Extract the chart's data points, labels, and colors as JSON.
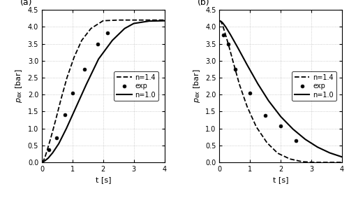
{
  "panel_a": {
    "label": "(a)",
    "n14_t": [
      0,
      0.05,
      0.1,
      0.18,
      0.3,
      0.45,
      0.62,
      0.82,
      1.05,
      1.3,
      1.6,
      2.0,
      2.5,
      3.0,
      3.5,
      4.0
    ],
    "n14_p": [
      0,
      0.05,
      0.15,
      0.38,
      0.75,
      1.25,
      1.85,
      2.5,
      3.1,
      3.6,
      3.95,
      4.18,
      4.2,
      4.2,
      4.2,
      4.2
    ],
    "n10_t": [
      0,
      0.05,
      0.1,
      0.2,
      0.35,
      0.55,
      0.8,
      1.1,
      1.45,
      1.85,
      2.3,
      2.7,
      3.0,
      3.5,
      4.0
    ],
    "n10_p": [
      0,
      0.02,
      0.05,
      0.12,
      0.28,
      0.55,
      1.0,
      1.6,
      2.3,
      3.05,
      3.6,
      3.95,
      4.1,
      4.17,
      4.18
    ],
    "exp_t": [
      0.22,
      0.48,
      0.75,
      1.0,
      1.4,
      1.82,
      2.15
    ],
    "exp_p": [
      0.38,
      0.72,
      1.4,
      2.05,
      2.75,
      3.5,
      3.83
    ],
    "xlabel": "t [s]",
    "ylabel": "$p_{ex}$ [bar]",
    "xlim": [
      0,
      4
    ],
    "ylim": [
      0,
      4.5
    ],
    "yticks": [
      0,
      0.5,
      1.0,
      1.5,
      2.0,
      2.5,
      3.0,
      3.5,
      4.0,
      4.5
    ],
    "xticks": [
      0,
      1,
      2,
      3,
      4
    ]
  },
  "panel_b": {
    "label": "(b)",
    "n14_t": [
      0,
      0.05,
      0.1,
      0.18,
      0.3,
      0.45,
      0.65,
      0.9,
      1.2,
      1.55,
      1.9,
      2.3,
      2.7,
      3.1,
      3.5,
      4.0
    ],
    "n14_p": [
      4.18,
      4.15,
      4.05,
      3.82,
      3.45,
      2.95,
      2.3,
      1.65,
      1.05,
      0.58,
      0.27,
      0.1,
      0.02,
      0.0,
      0.0,
      0.0
    ],
    "n10_t": [
      0,
      0.05,
      0.1,
      0.2,
      0.35,
      0.6,
      0.9,
      1.25,
      1.6,
      2.0,
      2.4,
      2.8,
      3.2,
      3.6,
      4.0
    ],
    "n10_p": [
      4.18,
      4.16,
      4.12,
      4.0,
      3.78,
      3.38,
      2.88,
      2.32,
      1.82,
      1.35,
      0.98,
      0.68,
      0.45,
      0.28,
      0.16
    ],
    "exp_t": [
      0.13,
      0.28,
      0.52,
      1.0,
      1.5,
      2.0,
      2.5
    ],
    "exp_p": [
      3.75,
      3.5,
      2.75,
      2.05,
      1.38,
      1.08,
      0.65
    ],
    "xlabel": "t [s]",
    "ylabel": "$p_{ex}$ [bar]",
    "xlim": [
      0,
      4
    ],
    "ylim": [
      0,
      4.5
    ],
    "yticks": [
      0,
      0.5,
      1.0,
      1.5,
      2.0,
      2.5,
      3.0,
      3.5,
      4.0,
      4.5
    ],
    "xticks": [
      0,
      1,
      2,
      3,
      4
    ]
  },
  "legend": {
    "n14_label": "n=1.4",
    "exp_label": "exp",
    "n10_label": "n=1.0"
  },
  "line_color": "black",
  "background_color": "white",
  "grid_color": "#c0c0c0",
  "fig_width": 5.0,
  "fig_height": 2.83
}
